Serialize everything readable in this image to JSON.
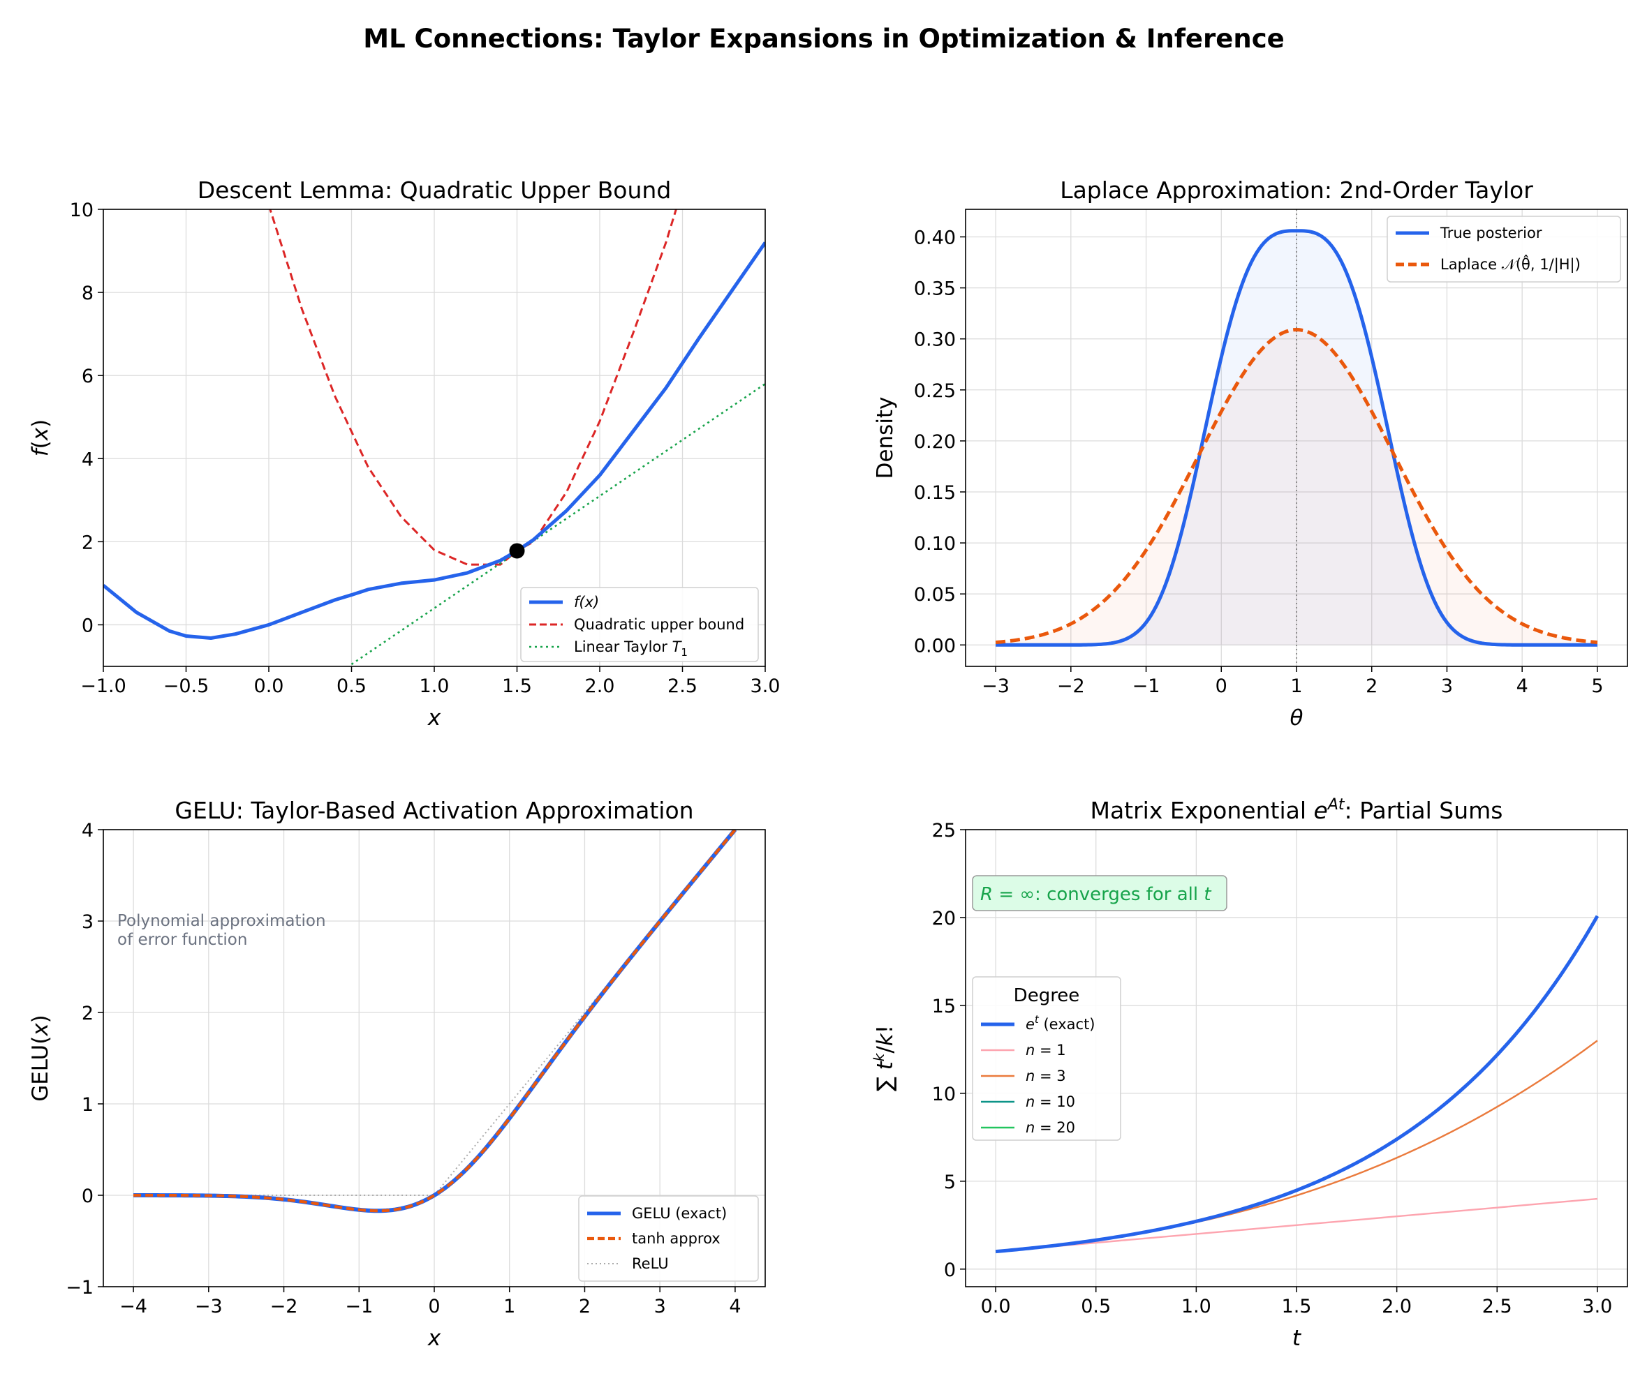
{
  "figure": {
    "title": "ML Connections: Taylor Expansions in Optimization & Inference"
  },
  "chart_data": [
    {
      "id": "descent",
      "type": "line",
      "title": "Descent Lemma: Quadratic Upper Bound",
      "xlabel": "x",
      "ylabel": "f(x)",
      "xlim": [
        -1.0,
        3.0
      ],
      "ylim": [
        -1,
        10
      ],
      "xticks": [
        -1.0,
        -0.5,
        0.0,
        0.5,
        1.0,
        1.5,
        2.0,
        2.5,
        3.0
      ],
      "xtick_labels": [
        "−1.0",
        "−0.5",
        "0.0",
        "0.5",
        "1.0",
        "1.5",
        "2.0",
        "2.5",
        "3.0"
      ],
      "yticks": [
        0,
        2,
        4,
        6,
        8,
        10
      ],
      "ytick_labels": [
        "0",
        "2",
        "4",
        "6",
        "8",
        "10"
      ],
      "grid": true,
      "legend_position": "lower-right",
      "colors": {
        "f": "#2563eb",
        "quad": "#dc2626",
        "lin": "#16a34a"
      },
      "series": [
        {
          "name": "f(x)",
          "style": "solid",
          "x": [
            -1.0,
            -0.8,
            -0.6,
            -0.5,
            -0.35,
            -0.2,
            0.0,
            0.2,
            0.4,
            0.5,
            0.6,
            0.8,
            1.0,
            1.2,
            1.4,
            1.5,
            1.6,
            1.8,
            2.0,
            2.2,
            2.4,
            2.6,
            2.8,
            3.0
          ],
          "y": [
            0.95,
            0.3,
            -0.15,
            -0.27,
            -0.32,
            -0.22,
            0.0,
            0.3,
            0.6,
            0.72,
            0.85,
            1.0,
            1.08,
            1.25,
            1.55,
            1.78,
            2.05,
            2.75,
            3.6,
            4.65,
            5.7,
            6.9,
            8.05,
            9.2
          ]
        },
        {
          "name": "Quadratic upper bound",
          "style": "dashed",
          "x": [
            0.0,
            0.2,
            0.4,
            0.6,
            0.8,
            1.0,
            1.2,
            1.4,
            1.5,
            1.6,
            1.8,
            2.0,
            2.2,
            2.4,
            2.5,
            2.6
          ],
          "y": [
            10.1,
            7.6,
            5.5,
            3.8,
            2.6,
            1.8,
            1.45,
            1.45,
            1.78,
            2.0,
            3.2,
            4.9,
            7.0,
            9.2,
            10.5,
            11.5
          ]
        },
        {
          "name": "Linear Taylor T1",
          "style": "dotted",
          "x": [
            0.5,
            3.0
          ],
          "y": [
            -0.95,
            5.8
          ]
        }
      ],
      "marker": {
        "x": 1.5,
        "y": 1.78
      }
    },
    {
      "id": "laplace",
      "type": "line",
      "title": "Laplace Approximation: 2nd-Order Taylor",
      "xlabel": "θ",
      "ylabel": "Density",
      "xlim": [
        -3.4,
        5.4
      ],
      "ylim": [
        -0.021,
        0.427
      ],
      "xticks": [
        -3,
        -2,
        -1,
        0,
        1,
        2,
        3,
        4,
        5
      ],
      "xtick_labels": [
        "−3",
        "−2",
        "−1",
        "0",
        "1",
        "2",
        "3",
        "4",
        "5"
      ],
      "yticks": [
        0.0,
        0.05,
        0.1,
        0.15,
        0.2,
        0.25,
        0.3,
        0.35,
        0.4
      ],
      "ytick_labels": [
        "0.00",
        "0.05",
        "0.10",
        "0.15",
        "0.20",
        "0.25",
        "0.30",
        "0.35",
        "0.40"
      ],
      "grid": true,
      "legend_position": "upper-right",
      "mode_line_x": 1,
      "colors": {
        "true": "#2563eb",
        "laplace": "#ea580c"
      },
      "series": [
        {
          "name": "True posterior",
          "style": "solid",
          "kind": "generalized-gaussian",
          "center": 1,
          "scale": 1.4,
          "power": 3,
          "peak": 0.406
        },
        {
          "name": "Laplace 𝒩(θ̂, 1/|H|)",
          "style": "dashed",
          "kind": "gaussian",
          "center": 1,
          "sigma": 1.29,
          "peak": 0.309
        }
      ]
    },
    {
      "id": "gelu",
      "type": "line",
      "title": "GELU: Taylor-Based Activation Approximation",
      "xlabel": "x",
      "ylabel": "GELU(x)",
      "xlim": [
        -4.4,
        4.4
      ],
      "ylim": [
        -1,
        4
      ],
      "xticks": [
        -4,
        -3,
        -2,
        -1,
        0,
        1,
        2,
        3,
        4
      ],
      "xtick_labels": [
        "−4",
        "−3",
        "−2",
        "−1",
        "0",
        "1",
        "2",
        "3",
        "4"
      ],
      "yticks": [
        -1,
        0,
        1,
        2,
        3,
        4
      ],
      "ytick_labels": [
        "−1",
        "0",
        "1",
        "2",
        "3",
        "4"
      ],
      "grid": true,
      "legend_position": "lower-right",
      "annotation": [
        "Polynomial approximation",
        "of error function"
      ],
      "colors": {
        "exact": "#2563eb",
        "tanh": "#ea580c",
        "relu": "#aaaaaa",
        "annotation": "#6b7280"
      },
      "domain": [
        -4,
        4
      ],
      "series": [
        {
          "name": "GELU (exact)",
          "style": "solid",
          "kind": "gelu"
        },
        {
          "name": "tanh approx",
          "style": "dashed",
          "kind": "gelu-tanh"
        },
        {
          "name": "ReLU",
          "style": "dotted",
          "kind": "relu"
        }
      ]
    },
    {
      "id": "matexp",
      "type": "line",
      "title": "Matrix Exponential e^{At}: Partial Sums",
      "xlabel": "t",
      "ylabel": "Σ t^k/k!",
      "xlim": [
        -0.15,
        3.15
      ],
      "ylim": [
        -1,
        25
      ],
      "xticks": [
        0.0,
        0.5,
        1.0,
        1.5,
        2.0,
        2.5,
        3.0
      ],
      "xtick_labels": [
        "0.0",
        "0.5",
        "1.0",
        "1.5",
        "2.0",
        "2.5",
        "3.0"
      ],
      "yticks": [
        0,
        5,
        10,
        15,
        20,
        25
      ],
      "ytick_labels": [
        "0",
        "5",
        "10",
        "15",
        "20",
        "25"
      ],
      "grid": true,
      "legend_position": "center-left",
      "legend_title": "Degree",
      "annotation": "R = ∞: converges for all t",
      "colors": {
        "exact": "#2563eb",
        "n1": "#fda4af",
        "n3": "#ea7a3c",
        "n10": "#0d9488",
        "n20": "#22c55e",
        "annotation": "#16a34a",
        "annotation_bg": "#dcfce7"
      },
      "domain": [
        0,
        3
      ],
      "series": [
        {
          "name": "e^t (exact)",
          "order": "exact"
        },
        {
          "name": "n = 1",
          "order": 1
        },
        {
          "name": "n = 3",
          "order": 3
        },
        {
          "name": "n = 10",
          "order": 10
        },
        {
          "name": "n = 20",
          "order": 20
        }
      ]
    }
  ]
}
